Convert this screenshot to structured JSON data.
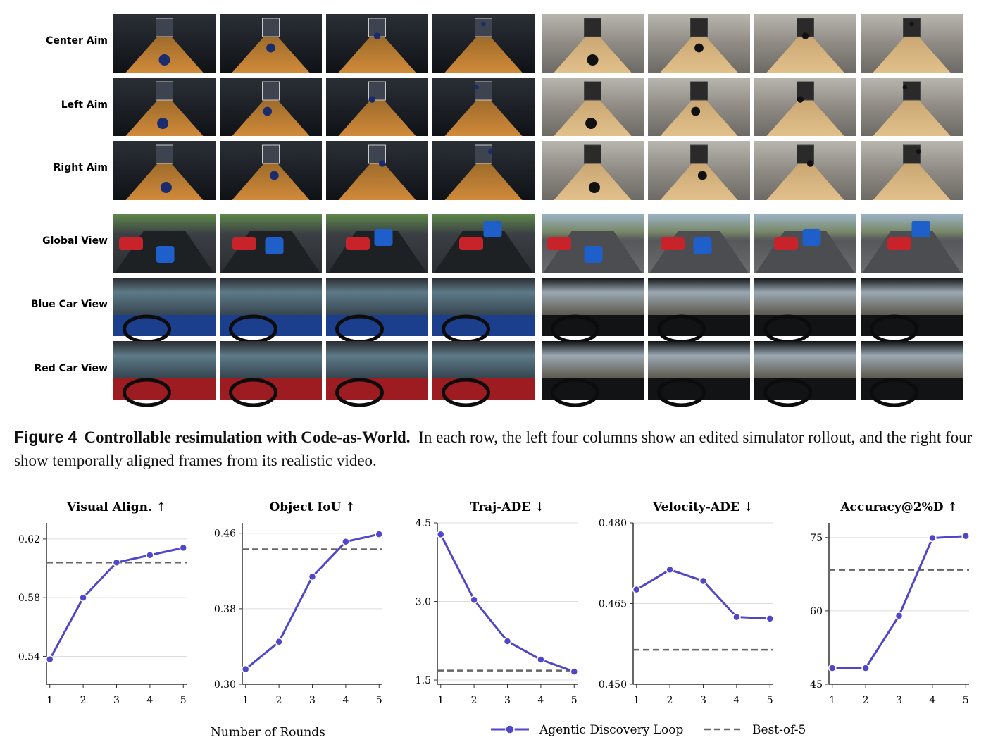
{
  "image_grid": {
    "row_labels": [
      "Center Aim",
      "Left Aim",
      "Right Aim",
      "Global View",
      "Blue Car View",
      "Red Car View"
    ]
  },
  "caption": {
    "label": "Figure 4",
    "title": "Controllable resimulation with Code-as-World.",
    "text": "In each row, the left four columns show an edited simulator rollout, and the right four show temporally aligned frames from its realistic video."
  },
  "x_axis_label": "Number of Rounds",
  "legend": [
    {
      "name": "Agentic Discovery Loop",
      "color": "#5046c8",
      "style": "line-marker"
    },
    {
      "name": "Best-of-5",
      "color": "#666666",
      "style": "dashed"
    }
  ],
  "chart_data": [
    {
      "type": "line",
      "title": "Visual Align. ↑",
      "x": [
        1,
        2,
        3,
        4,
        5
      ],
      "values": [
        0.538,
        0.58,
        0.604,
        0.609,
        0.614
      ],
      "best_of_5": 0.604,
      "xlim": [
        0.9,
        5.1
      ],
      "ylim": [
        0.521,
        0.631
      ],
      "yticks": [
        0.54,
        0.58,
        0.62
      ],
      "grid": true
    },
    {
      "type": "line",
      "title": "Object IoU ↑",
      "x": [
        1,
        2,
        3,
        4,
        5
      ],
      "values": [
        0.316,
        0.345,
        0.414,
        0.451,
        0.459
      ],
      "best_of_5": 0.443,
      "xlim": [
        0.9,
        5.1
      ],
      "ylim": [
        0.3,
        0.471
      ],
      "yticks": [
        {
          "value": 0.3,
          "label": "0.30"
        },
        0.38,
        0.46
      ],
      "grid": true
    },
    {
      "type": "line",
      "title": "Traj-ADE ↓",
      "x": [
        1,
        2,
        3,
        4,
        5
      ],
      "values": [
        4.28,
        3.03,
        2.24,
        1.89,
        1.66
      ],
      "best_of_5": 1.68,
      "xlim": [
        0.9,
        5.1
      ],
      "ylim": [
        1.42,
        4.5
      ],
      "yticks": [
        1.5,
        {
          "value": 3,
          "label": "3.0"
        },
        4.5
      ],
      "grid": true
    },
    {
      "type": "line",
      "title": "Velocity-ADE ↓",
      "x": [
        1,
        2,
        3,
        4,
        5
      ],
      "values": [
        0.4676,
        0.4713,
        0.4692,
        0.4625,
        0.4622
      ],
      "best_of_5": 0.4564,
      "xlim": [
        0.9,
        5.1
      ],
      "ylim": [
        0.45,
        0.48
      ],
      "yticks": [
        {
          "value": 0.45,
          "label": "0.450"
        },
        {
          "value": 0.465,
          "label": "0.465"
        },
        {
          "value": 0.48,
          "label": "0.480"
        }
      ],
      "grid": true
    },
    {
      "type": "line",
      "title": "Accuracy@2%D ↑",
      "x": [
        1,
        2,
        3,
        4,
        5
      ],
      "values": [
        48.3,
        48.3,
        59.0,
        74.9,
        75.3
      ],
      "best_of_5": 68.4,
      "xlim": [
        0.9,
        5.1
      ],
      "ylim": [
        45,
        78
      ],
      "yticks": [
        45,
        60,
        75
      ],
      "grid": true
    }
  ]
}
